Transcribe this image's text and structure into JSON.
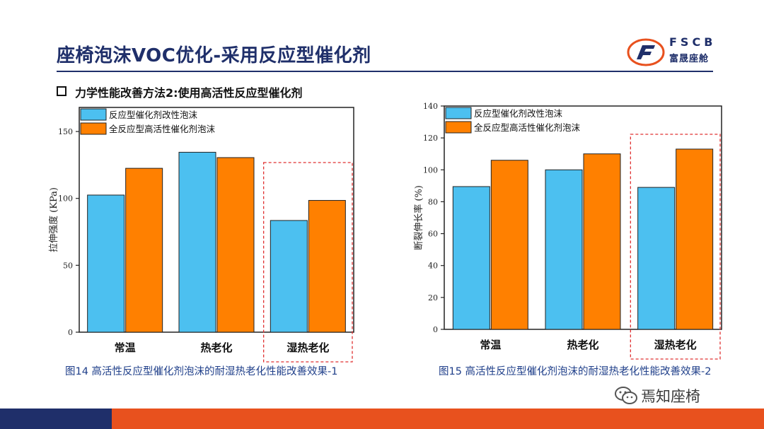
{
  "slide": {
    "title": "座椅泡沫VOC优化-采用反应型催化剂",
    "subtitle": "力学性能改善方法2:使用高活性反应型催化剂"
  },
  "logo": {
    "top": "FSCB",
    "bottom": "富晟座舱"
  },
  "watermark": "焉知座椅",
  "colors": {
    "blue": "#4cc0f0",
    "orange": "#ff8000",
    "navy": "#1f2f6a",
    "accent": "#e8511e",
    "highlight": "#e03030"
  },
  "charts": [
    {
      "caption": "图14 高活性反应型催化剂泡沫的耐湿热老化性能改善效果-1",
      "chart_data": {
        "type": "bar",
        "categories": [
          "常温",
          "热老化",
          "湿热老化"
        ],
        "series": [
          {
            "name": "反应型催化剂改性泡沫",
            "values": [
              102.5,
              134.5,
              83.5
            ]
          },
          {
            "name": "全反应型高活性催化剂泡沫",
            "values": [
              122.5,
              130.5,
              98.5
            ]
          }
        ],
        "ylabel": "拉伸强度 (KPa)",
        "ylim": [
          0,
          168
        ],
        "yticks": [
          "0",
          "50",
          "100",
          "150"
        ],
        "ytick_values": [
          0,
          50,
          100,
          150
        ],
        "legend": "top-left",
        "highlight_category": "湿热老化"
      }
    },
    {
      "caption": "图15 高活性反应型催化剂泡沫的耐湿热老化性能改善效果-2",
      "chart_data": {
        "type": "bar",
        "categories": [
          "常温",
          "热老化",
          "湿热老化"
        ],
        "series": [
          {
            "name": "反应型催化剂改性泡沫",
            "values": [
              89.5,
              100,
              89
            ]
          },
          {
            "name": "全反应型高活性催化剂泡沫",
            "values": [
              106,
              110,
              113
            ]
          }
        ],
        "ylabel": "断裂伸长率 (%)",
        "ylim": [
          0,
          140
        ],
        "yticks": [
          "0",
          "20",
          "40",
          "60",
          "80",
          "100",
          "120",
          "140"
        ],
        "ytick_values": [
          0,
          20,
          40,
          60,
          80,
          100,
          120,
          140
        ],
        "legend": "top-left",
        "highlight_category": "湿热老化"
      }
    }
  ]
}
